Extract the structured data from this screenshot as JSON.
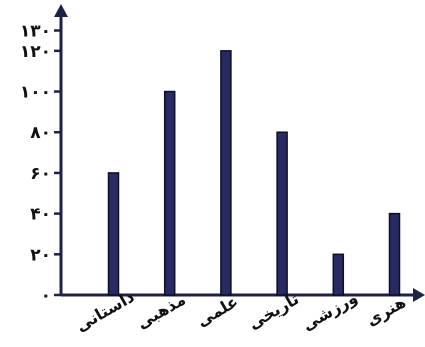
{
  "chart_data": {
    "type": "bar",
    "title": "",
    "xlabel": "",
    "ylabel": "",
    "categories": [
      "داستانی",
      "مذهبی",
      "علمی",
      "تاریخی",
      "ورزشی",
      "هنری"
    ],
    "values": [
      60,
      100,
      120,
      80,
      20,
      40
    ],
    "ylim": [
      0,
      130
    ],
    "yticks": [
      0,
      20,
      40,
      60,
      80,
      100,
      120,
      130
    ],
    "ytick_labels": [
      "۰",
      "۲۰",
      "۴۰",
      "۶۰",
      "۸۰",
      "۱۰۰",
      "۱۲۰",
      "۱۳۰"
    ],
    "grid": false,
    "colors": {
      "bar": "#272a63",
      "axis": "#1e2247"
    }
  }
}
